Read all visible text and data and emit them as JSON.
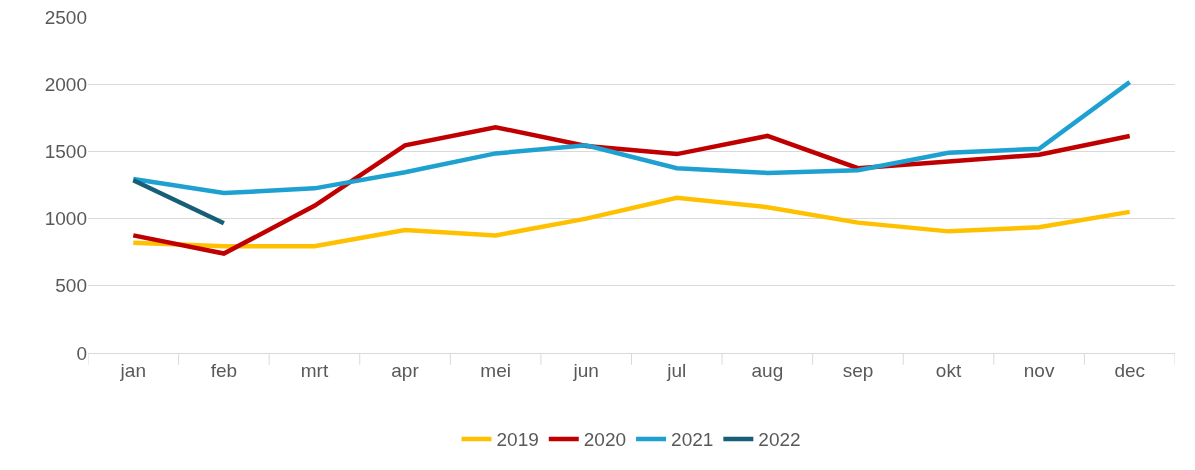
{
  "chart_data": {
    "type": "line",
    "categories": [
      "jan",
      "feb",
      "mrt",
      "apr",
      "mei",
      "jun",
      "jul",
      "aug",
      "sep",
      "okt",
      "nov",
      "dec"
    ],
    "series": [
      {
        "name": "2019",
        "color": "#ffc000",
        "values": [
          820,
          795,
          795,
          915,
          875,
          1000,
          1155,
          1085,
          970,
          905,
          935,
          1050
        ]
      },
      {
        "name": "2020",
        "color": "#c00000",
        "values": [
          875,
          740,
          1095,
          1545,
          1680,
          1540,
          1480,
          1615,
          1375,
          1425,
          1475,
          1615
        ]
      },
      {
        "name": "2021",
        "color": "#1ea1d1",
        "values": [
          1295,
          1190,
          1225,
          1345,
          1485,
          1545,
          1375,
          1340,
          1360,
          1490,
          1520,
          2015
        ]
      },
      {
        "name": "2022",
        "color": "#175e78",
        "values": [
          1285,
          965,
          null,
          null,
          null,
          null,
          null,
          null,
          null,
          null,
          null,
          null
        ]
      }
    ],
    "ylim": [
      0,
      2500
    ],
    "yticks": [
      0,
      500,
      1000,
      1500,
      2000,
      2500
    ],
    "grid": "y",
    "legend": "bottom",
    "marker": "none",
    "line_style": "solid"
  }
}
